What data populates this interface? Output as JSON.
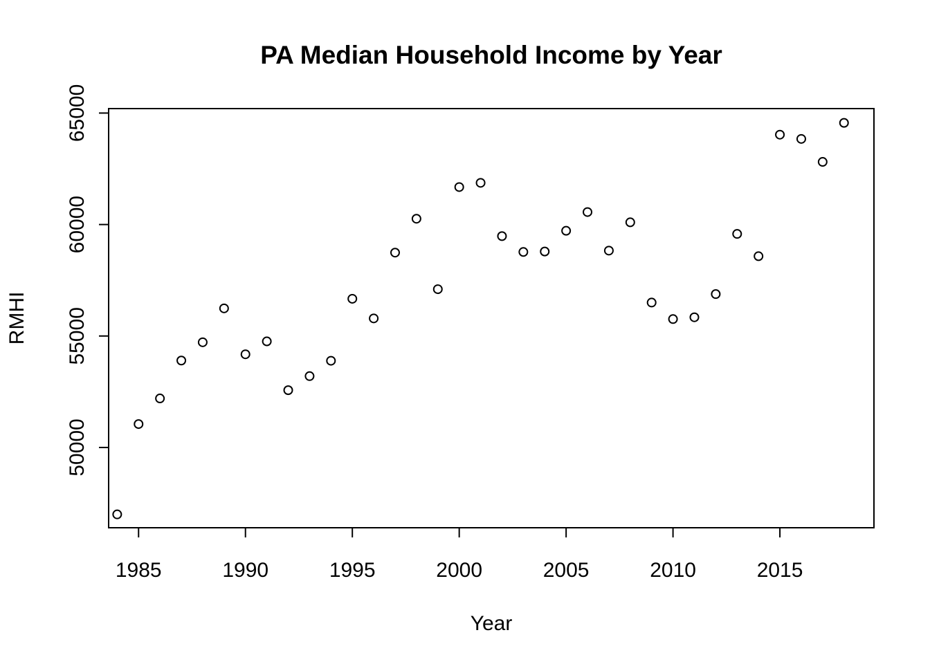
{
  "chart_data": {
    "type": "scatter",
    "title": "PA Median Household Income by Year",
    "xlabel": "Year",
    "ylabel": "RMHI",
    "xlim": [
      1983.6,
      2019.4
    ],
    "ylim": [
      46400,
      65200
    ],
    "xticks": [
      1985,
      1990,
      1995,
      2000,
      2005,
      2010,
      2015
    ],
    "yticks": [
      50000,
      55000,
      60000,
      65000
    ],
    "grid": false,
    "legend": "none",
    "x": [
      1984,
      1985,
      1986,
      1987,
      1988,
      1989,
      1990,
      1991,
      1992,
      1993,
      1994,
      1995,
      1996,
      1997,
      1998,
      1999,
      2000,
      2001,
      2002,
      2003,
      2004,
      2005,
      2006,
      2007,
      2008,
      2009,
      2010,
      2011,
      2012,
      2013,
      2014,
      2015,
      2016,
      2017,
      2018
    ],
    "y": [
      47000,
      51050,
      52200,
      53900,
      54720,
      56240,
      54180,
      54760,
      52570,
      53200,
      53890,
      56670,
      55790,
      58740,
      60260,
      57100,
      61680,
      61870,
      59480,
      58770,
      58790,
      59720,
      60560,
      58830,
      60100,
      56500,
      55760,
      55840,
      56880,
      59580,
      58580,
      64030,
      63840,
      62810,
      64560
    ]
  }
}
